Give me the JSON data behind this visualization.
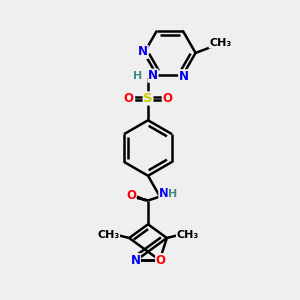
{
  "bg_color": "#efefef",
  "atom_colors": {
    "C": "#000000",
    "N": "#0000ee",
    "O": "#ff0000",
    "S": "#cccc00",
    "H": "#448888"
  },
  "bond_color": "#000000",
  "bond_width": 1.8,
  "fig_w": 3.0,
  "fig_h": 3.0,
  "dpi": 100,
  "xlim": [
    0,
    300
  ],
  "ylim": [
    0,
    300
  ]
}
